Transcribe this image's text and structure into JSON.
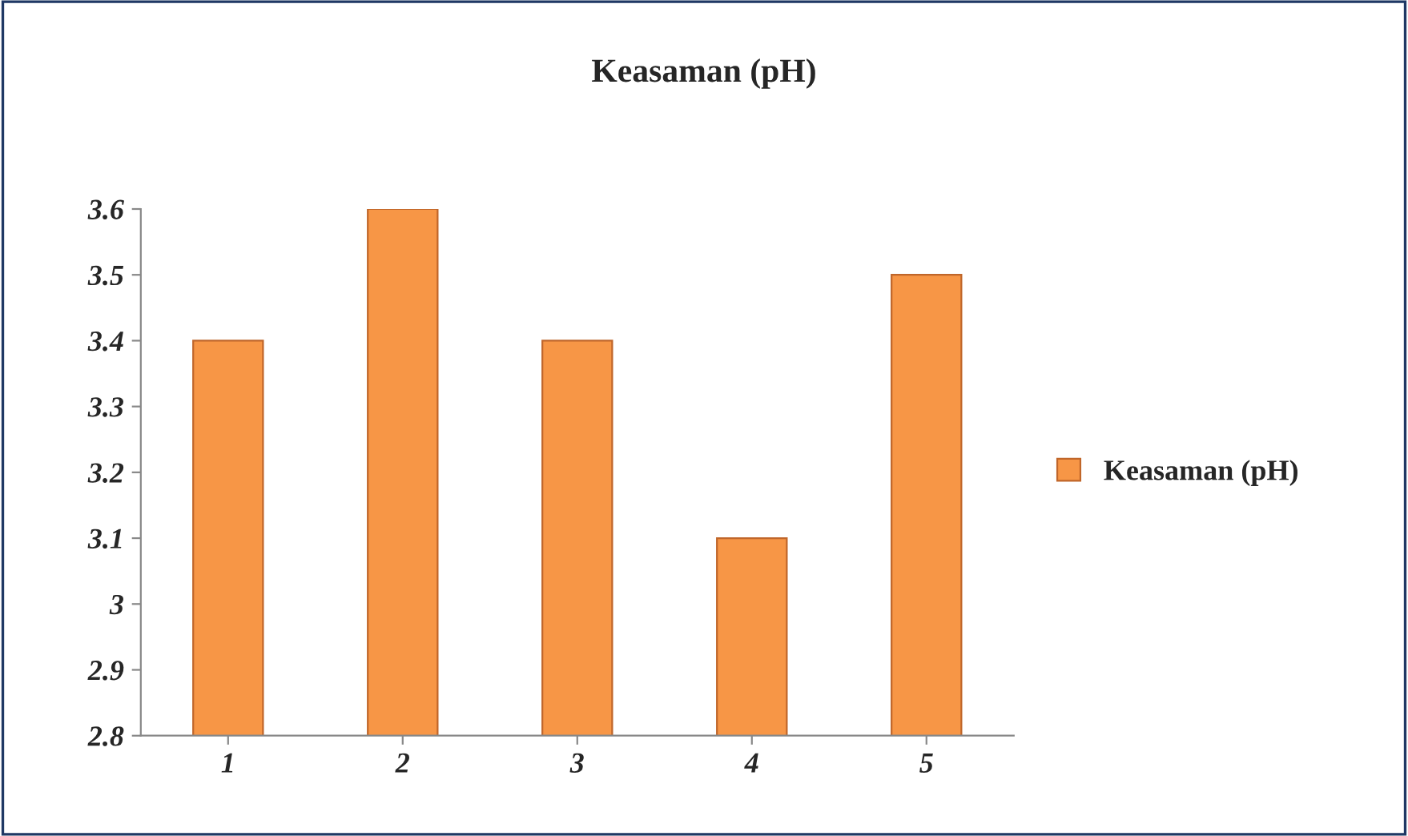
{
  "chart_data": {
    "type": "bar",
    "title": "Keasaman (pH)",
    "categories": [
      "1",
      "2",
      "3",
      "4",
      "5"
    ],
    "series": [
      {
        "name": "Keasaman (pH)",
        "color": "#f79646",
        "values": [
          3.4,
          3.6,
          3.4,
          3.1,
          3.5
        ]
      }
    ],
    "ylim": [
      2.8,
      3.6
    ],
    "yticks": [
      2.8,
      2.9,
      3,
      3.1,
      3.2,
      3.3,
      3.4,
      3.5,
      3.6
    ],
    "grid": false,
    "legend": "right"
  }
}
